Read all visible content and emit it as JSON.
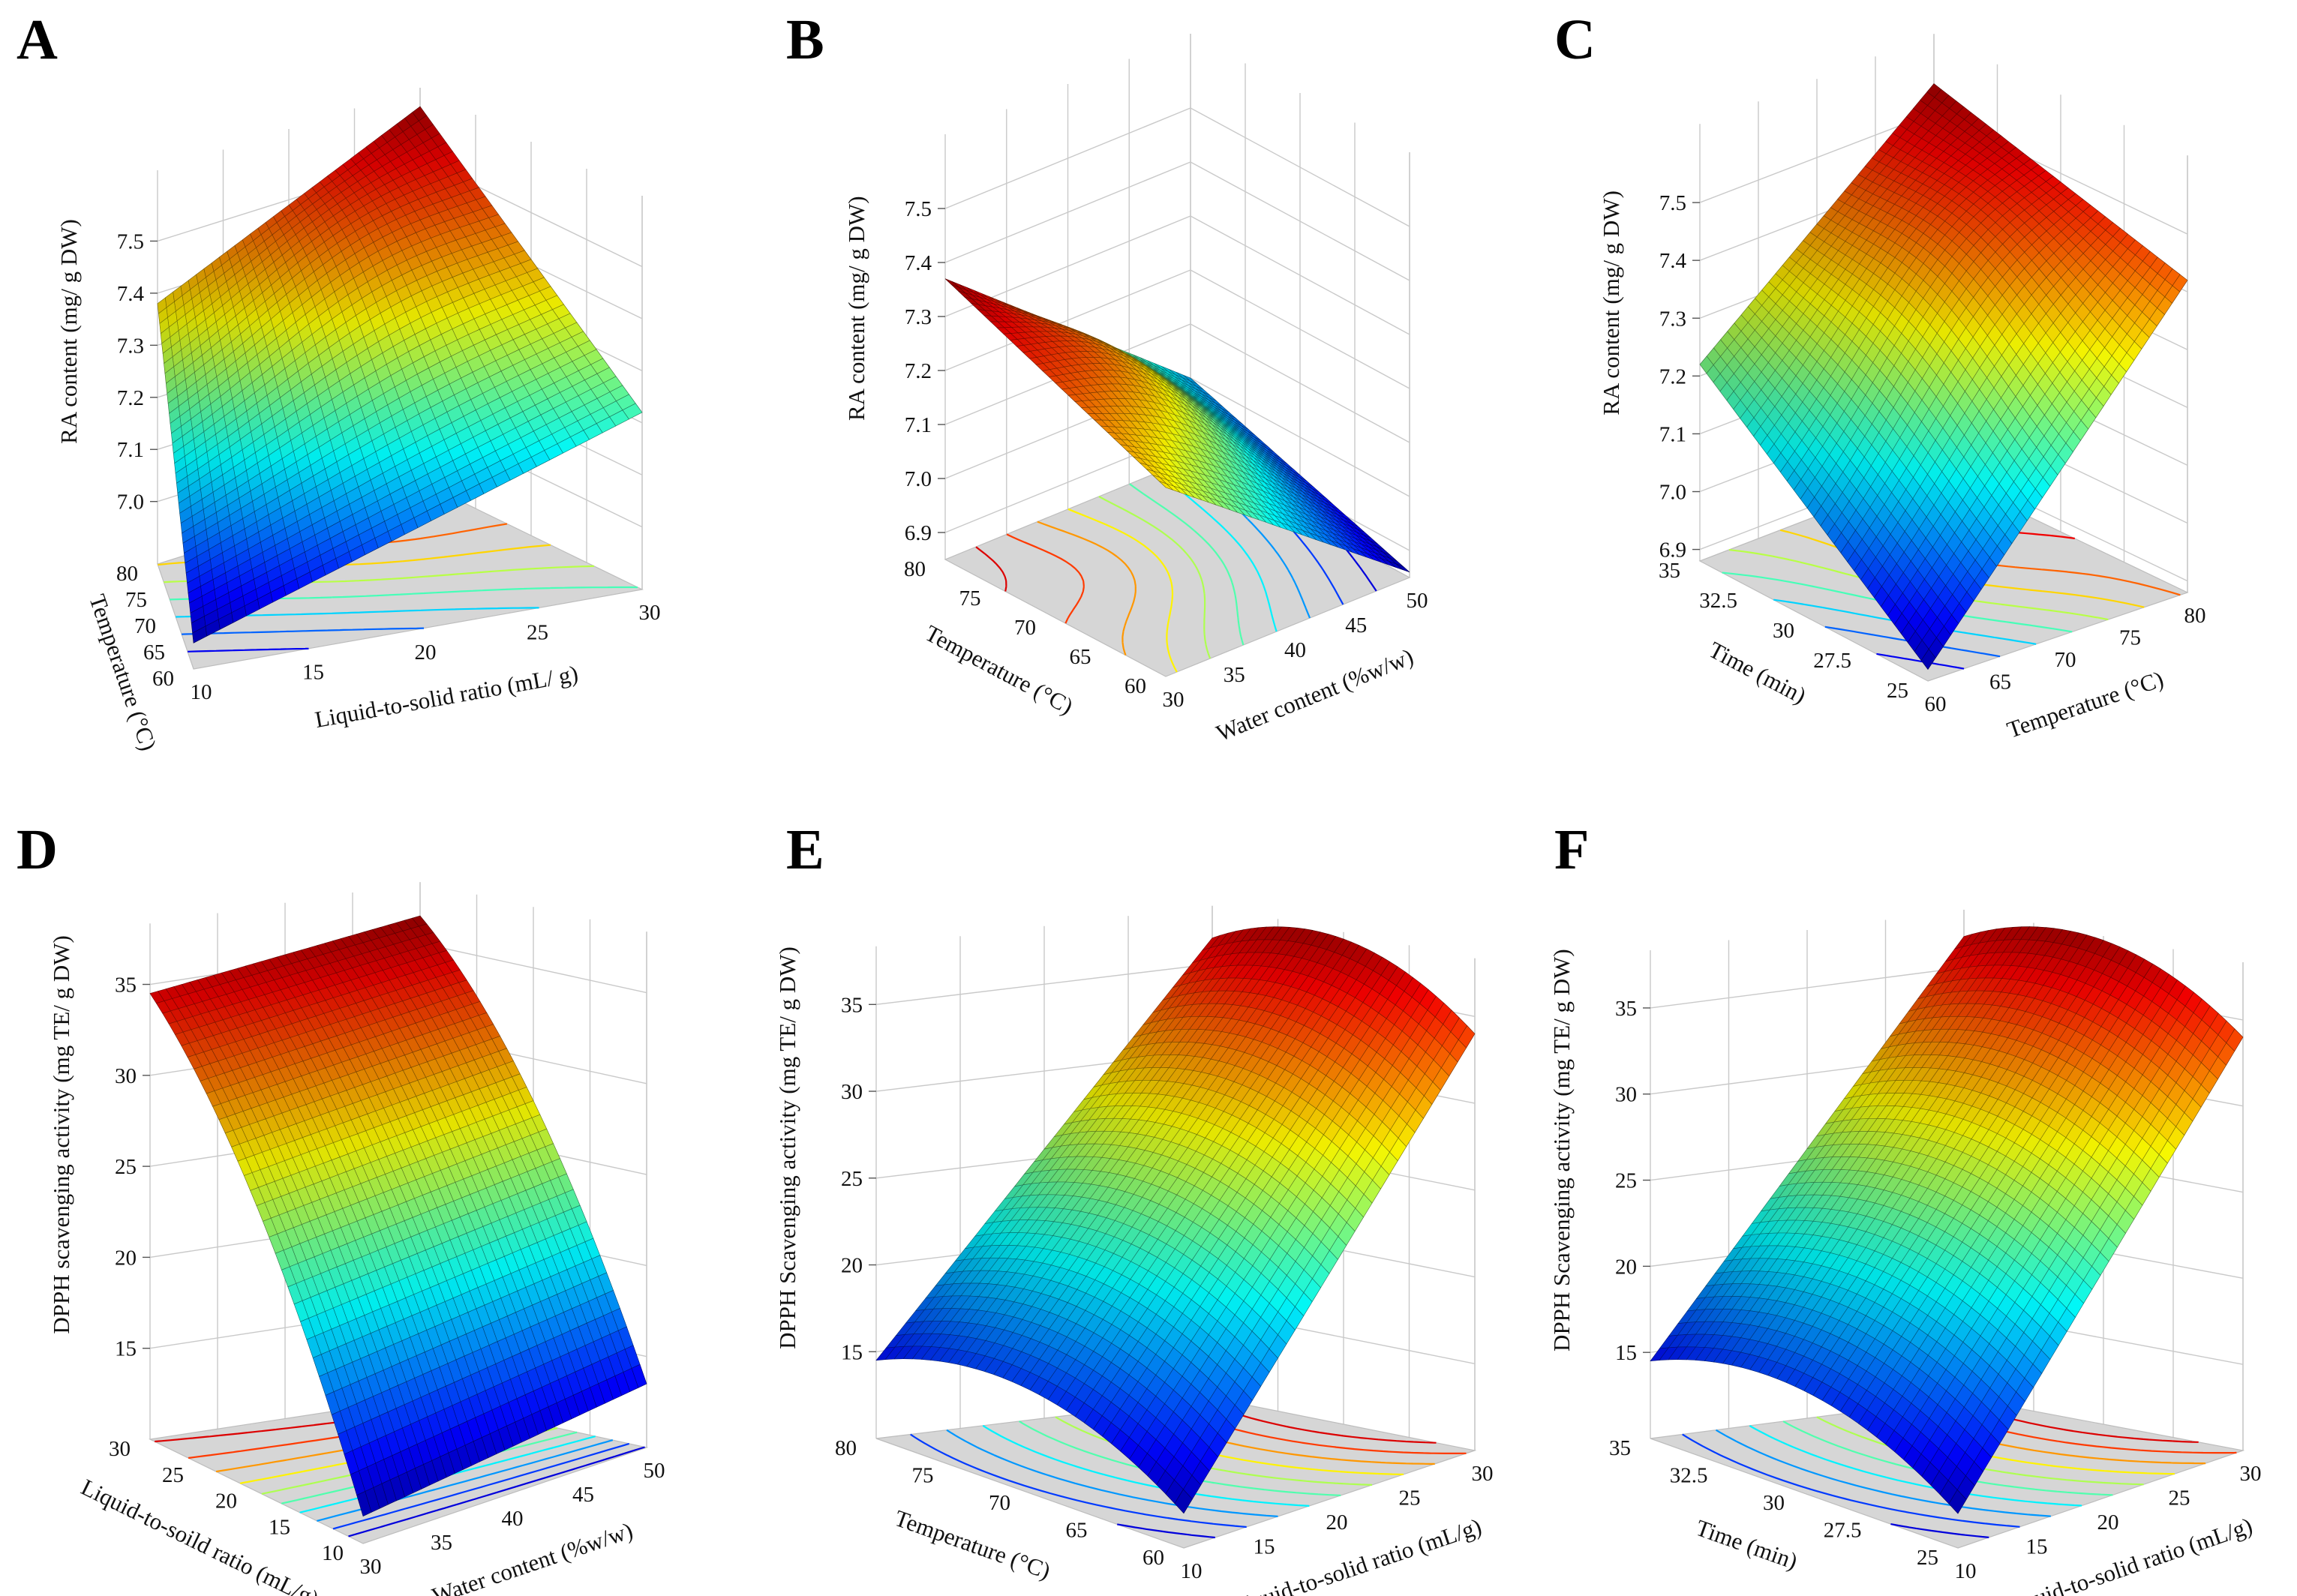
{
  "figure": {
    "layout": "2 rows x 3 columns of 3D response surface plots with contour projections on the floor"
  },
  "chart_data": [
    {
      "type": "surface3d",
      "panel": "A",
      "xlabel": "Liquid-to-solid ratio (mL/ g)",
      "ylabel": "Temperature (°C)",
      "zlabel": "RA content (mg/ g DW)",
      "xlim": [
        10,
        30
      ],
      "ylim": [
        60,
        80
      ],
      "zlim": [
        6.88,
        7.6
      ],
      "xticks": [
        "10",
        "15",
        "20",
        "25",
        "30"
      ],
      "yticks": [
        "60",
        "65",
        "70",
        "75",
        "80"
      ],
      "zticks": [
        "7.0",
        "7.1",
        "7.2",
        "7.3",
        "7.4",
        "7.5"
      ],
      "corner_values": {
        "x_min_y_min": 6.93,
        "x_max_y_min": 7.22,
        "x_min_y_max": 7.38,
        "x_max_y_max": 7.6
      },
      "peak": {
        "x": 24,
        "y": 78,
        "z": 7.6
      },
      "contour_levels": 8
    },
    {
      "type": "surface3d",
      "panel": "B",
      "xlabel": "Water content (%w/w)",
      "ylabel": "Temperature (°C)",
      "zlabel": "RA content (mg/ g DW)",
      "xlim": [
        30,
        50
      ],
      "ylim": [
        60,
        80
      ],
      "zlim": [
        6.85,
        7.6
      ],
      "xticks": [
        "30",
        "35",
        "40",
        "45",
        "50"
      ],
      "yticks": [
        "60",
        "65",
        "70",
        "75",
        "80"
      ],
      "zticks": [
        "6.9",
        "7.0",
        "7.1",
        "7.2",
        "7.3",
        "7.4",
        "7.5"
      ],
      "corner_values": {
        "x_min_y_min": 7.2,
        "x_max_y_min": 6.86,
        "x_min_y_max": 7.37,
        "x_max_y_max": 7.0
      },
      "peak": {
        "x": 35,
        "y": 74,
        "z": 7.56
      },
      "contour_levels": 10
    },
    {
      "type": "surface3d",
      "panel": "C",
      "xlabel": "Temperature (°C)",
      "ylabel": "Time (min)",
      "zlabel": "RA content (mg/ g DW)",
      "xlim": [
        60,
        80
      ],
      "ylim": [
        25,
        35
      ],
      "zlim": [
        6.88,
        7.6
      ],
      "xticks": [
        "60",
        "65",
        "70",
        "75",
        "80"
      ],
      "yticks": [
        "25",
        "27.5",
        "30",
        "32.5",
        "35"
      ],
      "zticks": [
        "6.9",
        "7.0",
        "7.1",
        "7.2",
        "7.3",
        "7.4",
        "7.5"
      ],
      "corner_values": {
        "x_min_y_min": 6.9,
        "x_max_y_min": 7.42,
        "x_min_y_max": 7.22,
        "x_max_y_max": 7.55
      },
      "peak": {
        "x": 75,
        "y": 31,
        "z": 7.58
      },
      "contour_levels": 8
    },
    {
      "type": "surface3d",
      "panel": "D",
      "xlabel": "Water content (%w/w)",
      "ylabel": "Liquid-to-soild ratio (mL/g)",
      "zlabel": "DPPH scavenging activity (mg TE/ g DW)",
      "xlim": [
        30,
        50
      ],
      "ylim": [
        10,
        30
      ],
      "zlim": [
        10,
        37
      ],
      "xticks": [
        "30",
        "35",
        "40",
        "45",
        "50"
      ],
      "yticks": [
        "10",
        "15",
        "20",
        "25",
        "30"
      ],
      "zticks": [
        "15",
        "20",
        "25",
        "30",
        "35"
      ],
      "corner_values": {
        "x_min_y_min": 11.5,
        "x_max_y_min": 13.5,
        "x_min_y_max": 34.5,
        "x_max_y_max": 36.5
      },
      "contour_levels": 10
    },
    {
      "type": "surface3d",
      "panel": "E",
      "xlabel": "Liquid-to-solid ratio (mL/g)",
      "ylabel": "Temperature (°C)",
      "zlabel": "DPPH Scavenging activity (mg TE/ g DW)",
      "xlim": [
        10,
        30
      ],
      "ylim": [
        60,
        80
      ],
      "zlim": [
        10,
        37
      ],
      "xticks": [
        "10",
        "15",
        "20",
        "25",
        "30"
      ],
      "yticks": [
        "60",
        "65",
        "70",
        "75",
        "80"
      ],
      "zticks": [
        "15",
        "20",
        "25",
        "30",
        "35"
      ],
      "corner_values": {
        "x_min_y_min": 12.0,
        "x_max_y_min": 34.0,
        "x_min_y_max": 14.5,
        "x_max_y_max": 36.5
      },
      "contour_levels": 10
    },
    {
      "type": "surface3d",
      "panel": "F",
      "xlabel": "Liquid-to-solid ratio (mL/g)",
      "ylabel": "Time (min)",
      "zlabel": "DPPH Scavenging activity (mg TE/ g DW)",
      "xlim": [
        10,
        30
      ],
      "ylim": [
        25,
        35
      ],
      "zlim": [
        10,
        37
      ],
      "xticks": [
        "10",
        "15",
        "20",
        "25",
        "30"
      ],
      "yticks": [
        "25",
        "27.5",
        "30",
        "32.5",
        "35"
      ],
      "zticks": [
        "15",
        "20",
        "25",
        "30",
        "35"
      ],
      "corner_values": {
        "x_min_y_min": 12.0,
        "x_max_y_min": 34.0,
        "x_min_y_max": 14.5,
        "x_max_y_max": 36.8
      },
      "contour_levels": 10
    }
  ]
}
